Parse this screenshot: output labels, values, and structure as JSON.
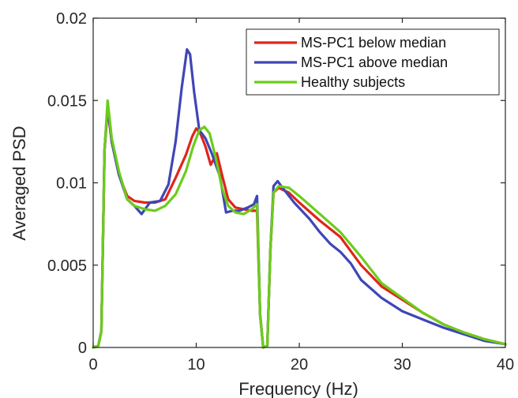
{
  "chart_data": {
    "type": "line",
    "title": "",
    "xlabel": "Frequency (Hz)",
    "ylabel": "Averaged PSD",
    "xlim": [
      0,
      40
    ],
    "ylim": [
      0,
      0.02
    ],
    "x_ticks": [
      0,
      10,
      20,
      30,
      40
    ],
    "x_tick_labels": [
      "0",
      "10",
      "20",
      "30",
      "40"
    ],
    "y_ticks": [
      0,
      0.005,
      0.01,
      0.015,
      0.02
    ],
    "y_tick_labels": [
      "0",
      "0.005",
      "0.01",
      "0.015",
      "0.02"
    ],
    "grid": false,
    "legend_position": "top-right",
    "series": [
      {
        "name": "MS-PC1 below median",
        "color": "#e0251b",
        "points": [
          [
            0,
            0
          ],
          [
            0.5,
            0.0001
          ],
          [
            0.8,
            0.001
          ],
          [
            1.1,
            0.012
          ],
          [
            1.4,
            0.0145
          ],
          [
            1.8,
            0.0125
          ],
          [
            2.5,
            0.0105
          ],
          [
            3.3,
            0.0092
          ],
          [
            4,
            0.0089
          ],
          [
            5,
            0.0088
          ],
          [
            6,
            0.0088
          ],
          [
            7,
            0.009
          ],
          [
            8,
            0.0103
          ],
          [
            9,
            0.0117
          ],
          [
            9.6,
            0.0128
          ],
          [
            10,
            0.0133
          ],
          [
            10.4,
            0.013
          ],
          [
            10.9,
            0.0122
          ],
          [
            11.4,
            0.0111
          ],
          [
            12,
            0.0118
          ],
          [
            12.5,
            0.0105
          ],
          [
            13.1,
            0.009
          ],
          [
            13.8,
            0.0085
          ],
          [
            14.6,
            0.0084
          ],
          [
            15.4,
            0.0083
          ],
          [
            15.9,
            0.0083
          ],
          [
            16.2,
            0.002
          ],
          [
            16.5,
            0
          ],
          [
            16.9,
            0.0001
          ],
          [
            17.2,
            0.006
          ],
          [
            17.5,
            0.0094
          ],
          [
            18,
            0.0097
          ],
          [
            19,
            0.0094
          ],
          [
            20,
            0.0088
          ],
          [
            22,
            0.0077
          ],
          [
            24,
            0.0067
          ],
          [
            26,
            0.005
          ],
          [
            28,
            0.0037
          ],
          [
            30,
            0.0029
          ],
          [
            32,
            0.0021
          ],
          [
            34,
            0.0014
          ],
          [
            36,
            0.0009
          ],
          [
            38,
            0.0005
          ],
          [
            40,
            0.0002
          ]
        ]
      },
      {
        "name": "MS-PC1 above median",
        "color": "#3f46b6",
        "points": [
          [
            0,
            0
          ],
          [
            0.5,
            0.0001
          ],
          [
            0.8,
            0.001
          ],
          [
            1.1,
            0.012
          ],
          [
            1.4,
            0.0147
          ],
          [
            1.8,
            0.0125
          ],
          [
            2.5,
            0.0105
          ],
          [
            3.3,
            0.009
          ],
          [
            4,
            0.0086
          ],
          [
            4.7,
            0.0081
          ],
          [
            5.5,
            0.0088
          ],
          [
            6.5,
            0.0089
          ],
          [
            7.3,
            0.0099
          ],
          [
            8,
            0.0125
          ],
          [
            8.6,
            0.0158
          ],
          [
            9.1,
            0.0181
          ],
          [
            9.4,
            0.0178
          ],
          [
            9.8,
            0.0155
          ],
          [
            10.3,
            0.0132
          ],
          [
            10.9,
            0.0127
          ],
          [
            11.5,
            0.0118
          ],
          [
            12.3,
            0.0104
          ],
          [
            12.9,
            0.0082
          ],
          [
            13.5,
            0.0083
          ],
          [
            14.2,
            0.0083
          ],
          [
            15,
            0.0085
          ],
          [
            15.6,
            0.0087
          ],
          [
            15.9,
            0.0092
          ],
          [
            16.2,
            0.002
          ],
          [
            16.5,
            0
          ],
          [
            16.9,
            0.0001
          ],
          [
            17.2,
            0.006
          ],
          [
            17.5,
            0.0098
          ],
          [
            17.9,
            0.0101
          ],
          [
            18.5,
            0.0096
          ],
          [
            19.5,
            0.0088
          ],
          [
            21,
            0.0078
          ],
          [
            22,
            0.007
          ],
          [
            23,
            0.0063
          ],
          [
            24,
            0.0058
          ],
          [
            25,
            0.0051
          ],
          [
            26,
            0.0041
          ],
          [
            28,
            0.003
          ],
          [
            30,
            0.0022
          ],
          [
            32,
            0.0017
          ],
          [
            34,
            0.0012
          ],
          [
            36,
            0.0008
          ],
          [
            38,
            0.0004
          ],
          [
            40,
            0.0002
          ]
        ]
      },
      {
        "name": "Healthy subjects",
        "color": "#6ccc1a",
        "points": [
          [
            0,
            0
          ],
          [
            0.5,
            0.0001
          ],
          [
            0.8,
            0.001
          ],
          [
            1.1,
            0.012
          ],
          [
            1.4,
            0.015
          ],
          [
            1.8,
            0.0127
          ],
          [
            2.5,
            0.0107
          ],
          [
            3.3,
            0.009
          ],
          [
            4,
            0.0086
          ],
          [
            5,
            0.0084
          ],
          [
            6,
            0.0083
          ],
          [
            7,
            0.0086
          ],
          [
            8,
            0.0093
          ],
          [
            9,
            0.0107
          ],
          [
            9.7,
            0.0122
          ],
          [
            10.3,
            0.0132
          ],
          [
            10.8,
            0.0134
          ],
          [
            11.3,
            0.013
          ],
          [
            11.9,
            0.0115
          ],
          [
            12.5,
            0.0097
          ],
          [
            13.1,
            0.0086
          ],
          [
            13.8,
            0.0082
          ],
          [
            14.6,
            0.0081
          ],
          [
            15.4,
            0.0084
          ],
          [
            15.9,
            0.0087
          ],
          [
            16.2,
            0.002
          ],
          [
            16.5,
            0
          ],
          [
            16.9,
            0.0001
          ],
          [
            17.2,
            0.006
          ],
          [
            17.5,
            0.0094
          ],
          [
            18,
            0.0098
          ],
          [
            19,
            0.0097
          ],
          [
            20,
            0.0092
          ],
          [
            22,
            0.0081
          ],
          [
            24,
            0.007
          ],
          [
            26,
            0.0055
          ],
          [
            28,
            0.0039
          ],
          [
            30,
            0.003
          ],
          [
            32,
            0.0021
          ],
          [
            34,
            0.0014
          ],
          [
            36,
            0.0009
          ],
          [
            38,
            0.0005
          ],
          [
            40,
            0.0002
          ]
        ]
      }
    ]
  }
}
